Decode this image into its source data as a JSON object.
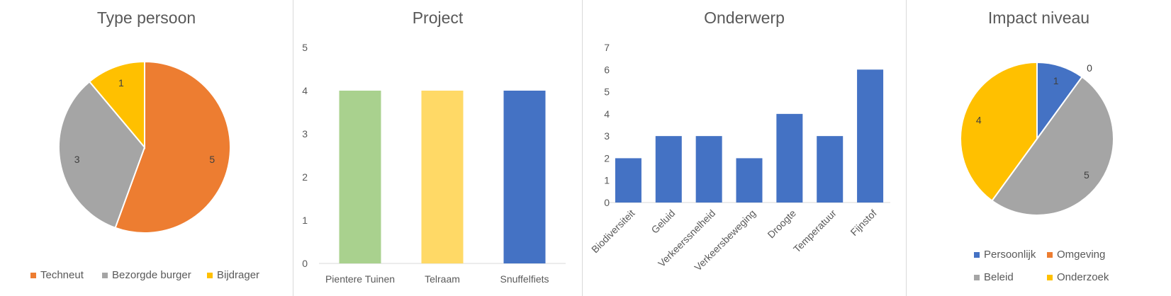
{
  "chart_data": [
    {
      "type": "pie",
      "title": "Type persoon",
      "categories": [
        "Techneut",
        "Bezorgde burger",
        "Bijdrager"
      ],
      "values": [
        5,
        3,
        1
      ],
      "colors": [
        "#ED7D31",
        "#A5A5A5",
        "#FFC000"
      ],
      "legend": "bottom"
    },
    {
      "type": "bar",
      "title": "Project",
      "categories": [
        "Pientere Tuinen",
        "Telraam",
        "Snuffelfiets"
      ],
      "values": [
        4,
        4,
        4
      ],
      "colors": [
        "#A9D18E",
        "#FFD966",
        "#4472C4"
      ],
      "yticks": [
        "0",
        "1",
        "2",
        "3",
        "4",
        "5"
      ],
      "ylim": [
        0,
        5
      ]
    },
    {
      "type": "bar",
      "title": "Onderwerp",
      "categories": [
        "Biodiversiteit",
        "Geluid",
        "Verkeerssnelheid",
        "Verkeersbeweging",
        "Droogte",
        "Temperatuur",
        "Fijnstof"
      ],
      "values": [
        2,
        3,
        3,
        2,
        4,
        3,
        6
      ],
      "colors": [
        "#4472C4"
      ],
      "yticks": [
        "0",
        "1",
        "2",
        "3",
        "4",
        "5",
        "6",
        "7"
      ],
      "ylim": [
        0,
        7
      ]
    },
    {
      "type": "pie",
      "title": "Impact niveau",
      "categories": [
        "Persoonlijk",
        "Omgeving",
        "Beleid",
        "Onderzoek"
      ],
      "values": [
        1,
        0,
        5,
        4
      ],
      "colors": [
        "#4472C4",
        "#ED7D31",
        "#A5A5A5",
        "#FFC000"
      ],
      "legend": "bottom"
    }
  ]
}
